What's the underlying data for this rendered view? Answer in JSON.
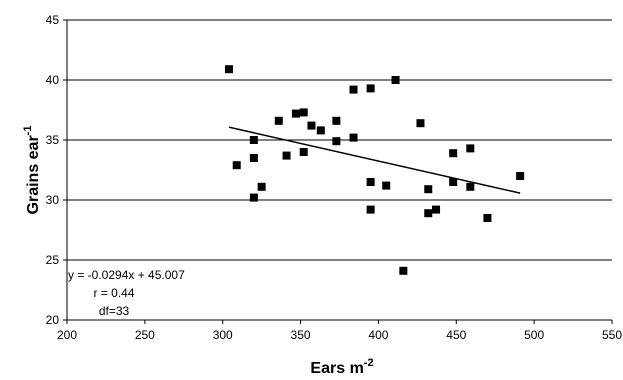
{
  "chart_data": {
    "type": "scatter",
    "title": "",
    "xlabel": "Ears m",
    "xlabel_superscript": "-2",
    "ylabel": "Grains ear",
    "ylabel_superscript": "-1",
    "xlim": [
      200,
      550
    ],
    "ylim": [
      20,
      45
    ],
    "xticks": [
      200,
      250,
      300,
      350,
      400,
      450,
      500,
      550
    ],
    "yticks": [
      20,
      25,
      30,
      35,
      40,
      45
    ],
    "xtick_labels": [
      "200",
      "250",
      "300",
      "350",
      "400",
      "450",
      "500",
      "550"
    ],
    "ytick_labels": [
      "20",
      "25",
      "30",
      "35",
      "40",
      "45"
    ],
    "grid": "horizontal",
    "legend": "none",
    "marker": "square",
    "marker_color": "#000000",
    "points": [
      {
        "x": 304,
        "y": 40.9
      },
      {
        "x": 309,
        "y": 32.9
      },
      {
        "x": 320,
        "y": 35.0
      },
      {
        "x": 320,
        "y": 33.5
      },
      {
        "x": 320,
        "y": 30.2
      },
      {
        "x": 325,
        "y": 31.1
      },
      {
        "x": 336,
        "y": 36.6
      },
      {
        "x": 341,
        "y": 33.7
      },
      {
        "x": 347,
        "y": 37.2
      },
      {
        "x": 352,
        "y": 37.3
      },
      {
        "x": 352,
        "y": 34.0
      },
      {
        "x": 357,
        "y": 36.2
      },
      {
        "x": 363,
        "y": 35.8
      },
      {
        "x": 373,
        "y": 36.6
      },
      {
        "x": 373,
        "y": 34.9
      },
      {
        "x": 384,
        "y": 39.2
      },
      {
        "x": 384,
        "y": 35.2
      },
      {
        "x": 395,
        "y": 39.3
      },
      {
        "x": 395,
        "y": 31.5
      },
      {
        "x": 395,
        "y": 29.2
      },
      {
        "x": 405,
        "y": 31.2
      },
      {
        "x": 411,
        "y": 40.0
      },
      {
        "x": 416,
        "y": 24.1
      },
      {
        "x": 427,
        "y": 36.4
      },
      {
        "x": 432,
        "y": 30.9
      },
      {
        "x": 432,
        "y": 28.9
      },
      {
        "x": 437,
        "y": 29.2
      },
      {
        "x": 448,
        "y": 33.9
      },
      {
        "x": 448,
        "y": 31.5
      },
      {
        "x": 459,
        "y": 34.3
      },
      {
        "x": 459,
        "y": 31.1
      },
      {
        "x": 470,
        "y": 28.5
      },
      {
        "x": 491,
        "y": 32.0
      }
    ],
    "trendline": {
      "type": "linear",
      "slope": -0.0294,
      "intercept": 45.007,
      "x_start": 304,
      "x_end": 491,
      "color": "#000000"
    },
    "annotations": [
      "y = -0.0294x + 45.007",
      "r = 0.44",
      "df=33"
    ]
  }
}
